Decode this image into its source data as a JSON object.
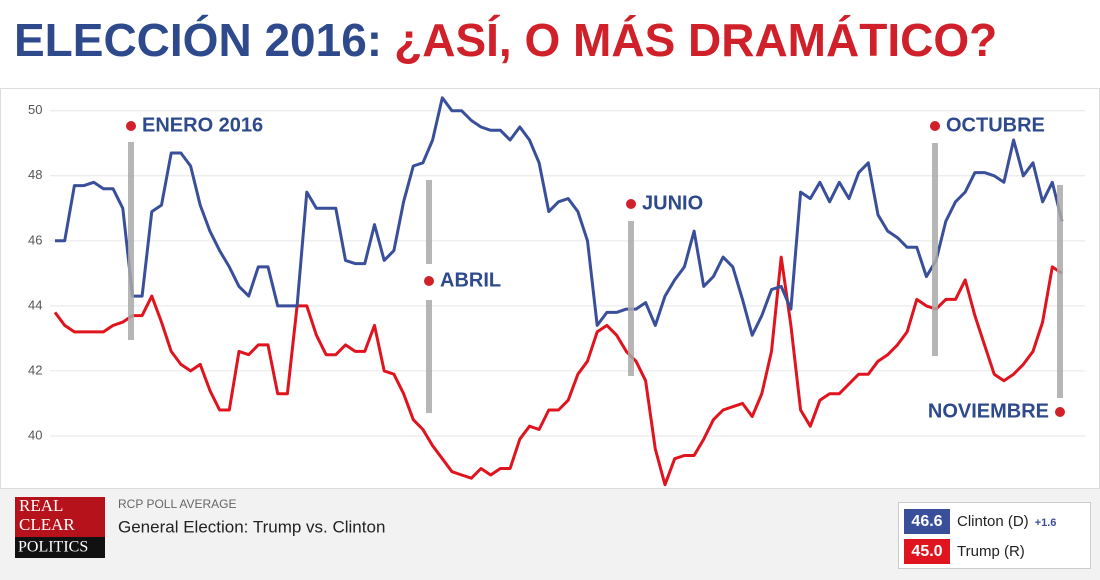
{
  "chart_data": {
    "type": "line",
    "title": {
      "part1": "ELECCIÓN 2016:",
      "part2": "¿ASÍ, O MÁS DRAMÁTICO?"
    },
    "ylim": [
      38.4,
      50.7
    ],
    "yticks": [
      40,
      42,
      44,
      46,
      48,
      50
    ],
    "grid": true,
    "series": [
      {
        "name": "Clinton (D)",
        "color": "#3a4f9a",
        "latest_label": "46.6",
        "spread_label": "+1.6",
        "values": [
          46.0,
          46.0,
          47.7,
          47.7,
          47.8,
          47.6,
          47.6,
          47.0,
          44.3,
          44.3,
          46.9,
          47.1,
          48.7,
          48.7,
          48.3,
          47.1,
          46.3,
          45.7,
          45.2,
          44.6,
          44.3,
          45.2,
          45.2,
          44.0,
          44.0,
          44.0,
          47.5,
          47.0,
          47.0,
          47.0,
          45.4,
          45.3,
          45.3,
          46.5,
          45.4,
          45.7,
          47.2,
          48.3,
          48.4,
          49.1,
          50.4,
          50.0,
          50.0,
          49.7,
          49.5,
          49.4,
          49.4,
          49.1,
          49.5,
          49.1,
          48.4,
          46.9,
          47.2,
          47.3,
          46.9,
          46.0,
          43.4,
          43.8,
          43.8,
          43.9,
          43.9,
          44.1,
          43.4,
          44.3,
          44.8,
          45.2,
          46.3,
          44.6,
          44.9,
          45.5,
          45.2,
          44.2,
          43.1,
          43.7,
          44.5,
          44.6,
          43.9,
          47.5,
          47.3,
          47.8,
          47.2,
          47.8,
          47.3,
          48.1,
          48.4,
          46.8,
          46.3,
          46.1,
          45.8,
          45.8,
          44.9,
          45.4,
          46.6,
          47.2,
          47.5,
          48.1,
          48.1,
          48.0,
          47.8,
          49.1,
          48.0,
          48.4,
          47.2,
          47.8,
          46.6
        ]
      },
      {
        "name": "Trump (R)",
        "color": "#e0141e",
        "latest_label": "45.0",
        "values": [
          43.8,
          43.4,
          43.2,
          43.2,
          43.2,
          43.2,
          43.4,
          43.5,
          43.7,
          43.7,
          44.3,
          43.5,
          42.6,
          42.2,
          42.0,
          42.2,
          41.4,
          40.8,
          40.8,
          42.6,
          42.5,
          42.8,
          42.8,
          41.3,
          41.3,
          44.0,
          44.0,
          43.1,
          42.5,
          42.5,
          42.8,
          42.6,
          42.6,
          43.4,
          42.0,
          41.9,
          41.3,
          40.5,
          40.2,
          39.7,
          39.3,
          38.9,
          38.8,
          38.7,
          39.0,
          38.8,
          39.0,
          39.0,
          39.9,
          40.3,
          40.2,
          40.8,
          40.8,
          41.1,
          41.9,
          42.3,
          43.2,
          43.4,
          43.1,
          42.6,
          42.3,
          41.7,
          39.6,
          38.5,
          39.3,
          39.4,
          39.4,
          39.9,
          40.5,
          40.8,
          40.9,
          41.0,
          40.6,
          41.3,
          42.6,
          45.5,
          43.4,
          40.8,
          40.3,
          41.1,
          41.3,
          41.3,
          41.6,
          41.9,
          41.9,
          42.3,
          42.5,
          42.8,
          43.2,
          44.2,
          44.0,
          43.9,
          44.2,
          44.2,
          44.8,
          43.7,
          42.8,
          41.9,
          41.7,
          41.9,
          42.2,
          42.6,
          43.5,
          45.2,
          45.0
        ]
      }
    ],
    "annotations": [
      "ENERO 2016",
      "ABRIL",
      "JUNIO",
      "OCTUBRE",
      "NOVIEMBRE"
    ],
    "footer": {
      "logo": [
        "REAL",
        "CLEAR",
        "POLITICS"
      ],
      "kicker": "RCP POLL AVERAGE",
      "headline": "General Election: Trump vs. Clinton"
    }
  }
}
